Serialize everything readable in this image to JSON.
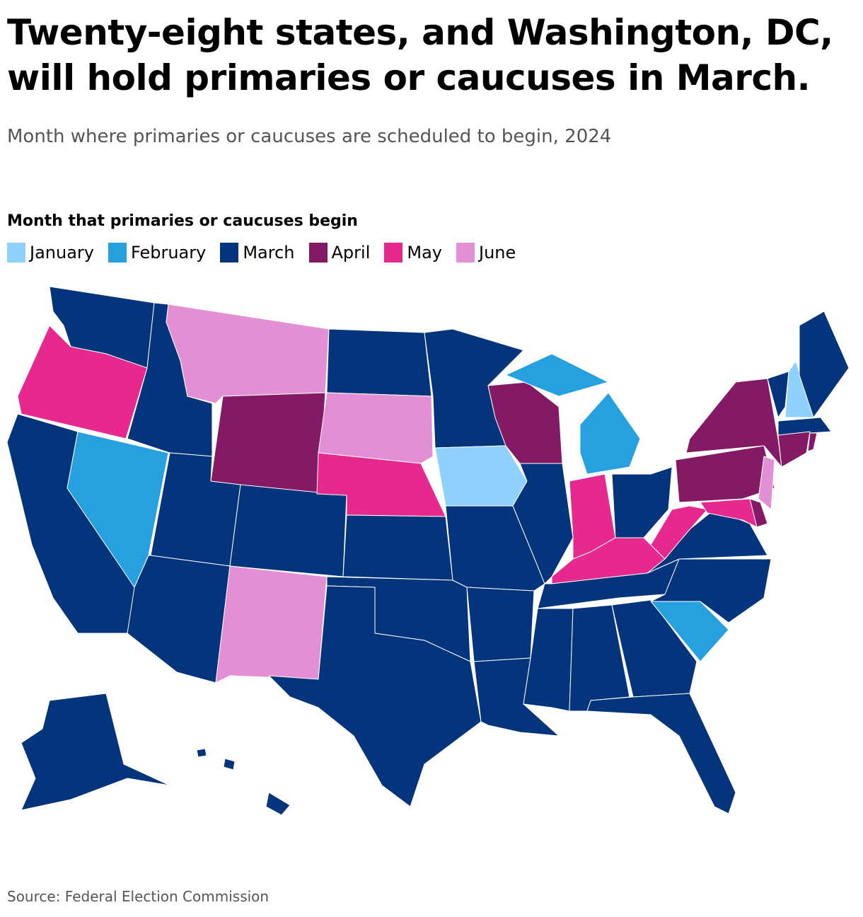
{
  "header": {
    "title": "Twenty-eight states, and Washington, DC, will hold primaries or caucuses in March.",
    "subtitle": "Month where primaries or caucuses are scheduled to begin, 2024"
  },
  "legend": {
    "title": "Month that primaries or caucuses begin",
    "items": [
      {
        "label": "January",
        "color": "#8ed1fc"
      },
      {
        "label": "February",
        "color": "#27a0e0"
      },
      {
        "label": "March",
        "color": "#04347c"
      },
      {
        "label": "April",
        "color": "#841a66"
      },
      {
        "label": "May",
        "color": "#e6288f"
      },
      {
        "label": "June",
        "color": "#e28fd6"
      }
    ]
  },
  "map": {
    "state_months": [
      2,
      4,
      2,
      1,
      2,
      5,
      3,
      2,
      2,
      2,
      5,
      2,
      5,
      4,
      2,
      2,
      2,
      2,
      0,
      2,
      2,
      2,
      3,
      2,
      1,
      1,
      4,
      2,
      4,
      2,
      2,
      2,
      2,
      2,
      1,
      2,
      2,
      4,
      3,
      3,
      2,
      0,
      2,
      2,
      3,
      3,
      5,
      3,
      4,
      2,
      2,
      2,
      2
    ]
  },
  "footer": {
    "source": "Source: Federal Election Commission"
  }
}
